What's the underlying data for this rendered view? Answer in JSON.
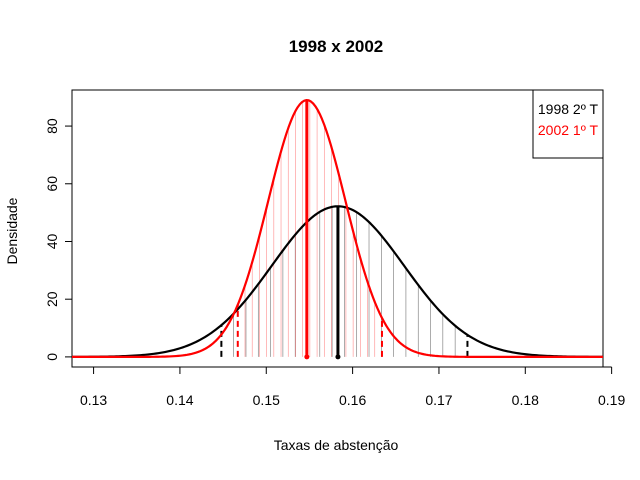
{
  "chart_data": {
    "type": "line",
    "title": "1998 x 2002",
    "xlabel": "Taxas de abstenção",
    "ylabel": "Densidade",
    "xlim": [
      0.1275,
      0.189
    ],
    "ylim": [
      -3.5,
      92.5
    ],
    "x_ticks": [
      0.13,
      0.14,
      0.15,
      0.16,
      0.17,
      0.18,
      0.19
    ],
    "x_tick_labels": [
      "0.13",
      "0.14",
      "0.15",
      "0.16",
      "0.17",
      "0.18",
      "0.19"
    ],
    "y_ticks": [
      0,
      20,
      40,
      60,
      80
    ],
    "y_tick_labels": [
      "0",
      "20",
      "40",
      "60",
      "80"
    ],
    "grid": false,
    "legend_position": "top-right",
    "series": [
      {
        "name": "1998 2º T",
        "color": "#000000",
        "distribution": "normal",
        "mean": 0.1583,
        "sd": 0.00765,
        "peak_density": 52.2,
        "x_range": [
          0.1275,
          0.189
        ],
        "lower_limit": 0.1448,
        "upper_limit": 0.1733
      },
      {
        "name": "2002 1º T",
        "color": "#ff0000",
        "distribution": "normal",
        "mean": 0.1547,
        "sd": 0.00448,
        "peak_density": 89.0,
        "x_range": [
          0.1275,
          0.189
        ],
        "lower_limit": 0.1467,
        "upper_limit": 0.1634
      }
    ]
  }
}
